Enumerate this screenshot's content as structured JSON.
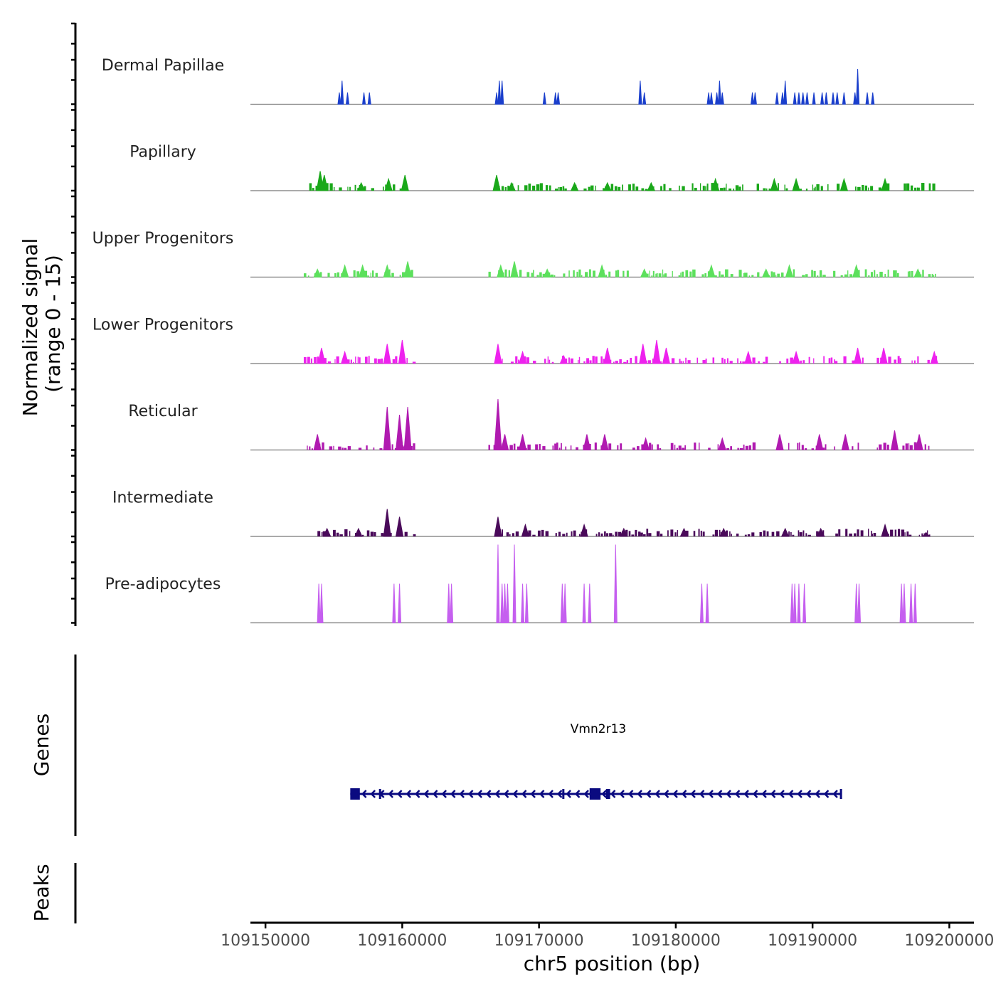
{
  "chart_data": {
    "type": "area",
    "ylabel": "Normalized signal",
    "ylabel_range": "(range 0 - 15)",
    "xlabel": "chr5 position (bp)",
    "xlim": [
      109148900,
      109201800
    ],
    "ylim": [
      0,
      15
    ],
    "x_ticks": [
      109150000,
      109160000,
      109170000,
      109180000,
      109190000,
      109200000
    ],
    "x_tick_labels": [
      "109150000",
      "109160000",
      "109170000",
      "109180000",
      "109190000",
      "109200000"
    ],
    "series": [
      {
        "name": "Dermal Papillae",
        "color": "#1a3fcc",
        "peaks": [
          [
            109155400,
            3
          ],
          [
            109155600,
            6
          ],
          [
            109156000,
            3
          ],
          [
            109157200,
            3
          ],
          [
            109157600,
            3
          ],
          [
            109166900,
            3
          ],
          [
            109167100,
            6
          ],
          [
            109167300,
            6
          ],
          [
            109170400,
            3
          ],
          [
            109171200,
            3
          ],
          [
            109171400,
            3
          ],
          [
            109177400,
            6
          ],
          [
            109177700,
            3
          ],
          [
            109182400,
            3
          ],
          [
            109182600,
            3
          ],
          [
            109183000,
            3
          ],
          [
            109183200,
            6
          ],
          [
            109183400,
            3
          ],
          [
            109185600,
            3
          ],
          [
            109185800,
            3
          ],
          [
            109187400,
            3
          ],
          [
            109187800,
            3
          ],
          [
            109188000,
            6
          ],
          [
            109188700,
            3
          ],
          [
            109189000,
            3
          ],
          [
            109189300,
            3
          ],
          [
            109189600,
            3
          ],
          [
            109190100,
            3
          ],
          [
            109190700,
            3
          ],
          [
            109191000,
            3
          ],
          [
            109191500,
            3
          ],
          [
            109191800,
            3
          ],
          [
            109192300,
            3
          ],
          [
            109193100,
            3
          ],
          [
            109193300,
            9
          ],
          [
            109194000,
            3
          ],
          [
            109194400,
            3
          ]
        ]
      },
      {
        "name": "Papillary",
        "color": "#1aa81a",
        "regions": [
          [
            109153200,
            109160600
          ],
          [
            109166500,
            109199000
          ]
        ],
        "peaks": [
          [
            109154000,
            5
          ],
          [
            109154300,
            4
          ],
          [
            109157000,
            2
          ],
          [
            109159000,
            3
          ],
          [
            109160200,
            4
          ],
          [
            109166900,
            4
          ],
          [
            109168000,
            2
          ],
          [
            109172600,
            2
          ],
          [
            109175000,
            2
          ],
          [
            109178200,
            2
          ],
          [
            109182900,
            3
          ],
          [
            109187200,
            3
          ],
          [
            109188800,
            3
          ],
          [
            109192300,
            3
          ],
          [
            109195300,
            3
          ]
        ]
      },
      {
        "name": "Upper Progenitors",
        "color": "#5ce05c",
        "regions": [
          [
            109152800,
            109160800
          ],
          [
            109166300,
            109199000
          ]
        ],
        "peaks": [
          [
            109153800,
            2
          ],
          [
            109155800,
            3
          ],
          [
            109157100,
            3
          ],
          [
            109158900,
            3
          ],
          [
            109160400,
            4
          ],
          [
            109167200,
            3
          ],
          [
            109168200,
            4
          ],
          [
            109170600,
            2
          ],
          [
            109174600,
            3
          ],
          [
            109177700,
            2
          ],
          [
            109182600,
            3
          ],
          [
            109186600,
            2
          ],
          [
            109188300,
            3
          ],
          [
            109193200,
            3
          ],
          [
            109197700,
            2
          ]
        ]
      },
      {
        "name": "Lower Progenitors",
        "color": "#ee22ee",
        "regions": [
          [
            109152800,
            109160800
          ],
          [
            109166900,
            109199000
          ]
        ],
        "peaks": [
          [
            109154100,
            4
          ],
          [
            109155800,
            3
          ],
          [
            109158900,
            5
          ],
          [
            109160000,
            6
          ],
          [
            109167000,
            5
          ],
          [
            109168800,
            3
          ],
          [
            109171800,
            2
          ],
          [
            109175000,
            4
          ],
          [
            109177600,
            5
          ],
          [
            109178600,
            6
          ],
          [
            109179300,
            4
          ],
          [
            109185300,
            3
          ],
          [
            109188800,
            3
          ],
          [
            109193300,
            4
          ],
          [
            109195200,
            4
          ],
          [
            109198900,
            3
          ]
        ]
      },
      {
        "name": "Reticular",
        "color": "#b01ab0",
        "regions": [
          [
            109152800,
            109160800
          ],
          [
            109166300,
            109199000
          ]
        ],
        "peaks": [
          [
            109153800,
            4
          ],
          [
            109158900,
            11
          ],
          [
            109159800,
            9
          ],
          [
            109160400,
            11
          ],
          [
            109167000,
            13
          ],
          [
            109167500,
            4
          ],
          [
            109168800,
            4
          ],
          [
            109173500,
            4
          ],
          [
            109174800,
            4
          ],
          [
            109177800,
            3
          ],
          [
            109183400,
            3
          ],
          [
            109187600,
            4
          ],
          [
            109190500,
            4
          ],
          [
            109192400,
            4
          ],
          [
            109196000,
            5
          ],
          [
            109197800,
            4
          ]
        ]
      },
      {
        "name": "Intermediate",
        "color": "#4a0a5a",
        "regions": [
          [
            109153800,
            109160800
          ],
          [
            109166800,
            109198700
          ]
        ],
        "peaks": [
          [
            109154500,
            2
          ],
          [
            109156800,
            2
          ],
          [
            109158900,
            7
          ],
          [
            109159800,
            5
          ],
          [
            109167000,
            5
          ],
          [
            109169000,
            3
          ],
          [
            109173300,
            3
          ],
          [
            109176200,
            2
          ],
          [
            109180600,
            2
          ],
          [
            109183500,
            2
          ],
          [
            109188000,
            2
          ],
          [
            109190600,
            2
          ],
          [
            109195300,
            3
          ],
          [
            109198300,
            1
          ]
        ]
      },
      {
        "name": "Pre-adipocytes",
        "color": "#c55fef",
        "peaks": [
          [
            109153900,
            10
          ],
          [
            109154100,
            10
          ],
          [
            109159400,
            10
          ],
          [
            109159800,
            10
          ],
          [
            109163400,
            10
          ],
          [
            109163600,
            10
          ],
          [
            109167000,
            20
          ],
          [
            109167300,
            10
          ],
          [
            109167500,
            10
          ],
          [
            109167700,
            10
          ],
          [
            109168200,
            20
          ],
          [
            109168800,
            10
          ],
          [
            109169100,
            10
          ],
          [
            109171700,
            10
          ],
          [
            109171900,
            10
          ],
          [
            109173300,
            10
          ],
          [
            109173700,
            10
          ],
          [
            109175600,
            20
          ],
          [
            109181900,
            10
          ],
          [
            109182300,
            10
          ],
          [
            109188500,
            10
          ],
          [
            109188700,
            10
          ],
          [
            109189000,
            10
          ],
          [
            109189400,
            10
          ],
          [
            109193200,
            10
          ],
          [
            109193400,
            10
          ],
          [
            109196500,
            10
          ],
          [
            109196700,
            10
          ],
          [
            109197200,
            10
          ],
          [
            109197500,
            10
          ]
        ]
      }
    ],
    "genes_track": {
      "title": "Genes",
      "gene_name": "Vmn2r13",
      "color": "#0a0a80",
      "strand": "-",
      "start": 109156200,
      "end": 109192100,
      "exons": [
        [
          109156200,
          109156900
        ],
        [
          109158300,
          109158400
        ],
        [
          109171700,
          109171800
        ],
        [
          109173700,
          109174500
        ],
        [
          109174900,
          109175200
        ],
        [
          109192000,
          109192100
        ]
      ]
    },
    "peaks_track": {
      "title": "Peaks",
      "peaks": []
    }
  }
}
